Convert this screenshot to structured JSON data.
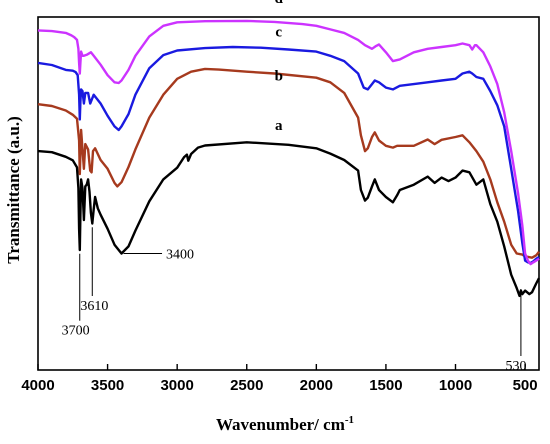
{
  "chart_data": {
    "type": "line",
    "xlabel": "Wavenumber/ cm",
    "xlabel_sup": "-1",
    "ylabel": "Transmittance (a.u.)",
    "xlim": [
      4000,
      400
    ],
    "ylim": [
      0,
      100
    ],
    "x_ticks": [
      4000,
      3500,
      3000,
      2500,
      2000,
      1500,
      1000,
      500
    ],
    "grid": false,
    "series": [
      {
        "name": "a",
        "color": "#000000",
        "points": [
          [
            4000,
            62
          ],
          [
            3900,
            61.7
          ],
          [
            3800,
            60.4
          ],
          [
            3750,
            59.4
          ],
          [
            3720,
            57.4
          ],
          [
            3710,
            51.5
          ],
          [
            3705,
            40
          ],
          [
            3700,
            34
          ],
          [
            3695,
            44
          ],
          [
            3690,
            54
          ],
          [
            3680,
            51.5
          ],
          [
            3670,
            42.5
          ],
          [
            3660,
            52
          ],
          [
            3650,
            52.5
          ],
          [
            3640,
            54
          ],
          [
            3630,
            50.5
          ],
          [
            3620,
            44.5
          ],
          [
            3610,
            41.5
          ],
          [
            3600,
            45.5
          ],
          [
            3590,
            49
          ],
          [
            3570,
            45.8
          ],
          [
            3550,
            44
          ],
          [
            3500,
            40
          ],
          [
            3450,
            35.5
          ],
          [
            3400,
            33
          ],
          [
            3350,
            35
          ],
          [
            3300,
            39.5
          ],
          [
            3200,
            47.8
          ],
          [
            3100,
            54
          ],
          [
            3000,
            57.3
          ],
          [
            2950,
            60.3
          ],
          [
            2930,
            61
          ],
          [
            2920,
            59.3
          ],
          [
            2900,
            61.2
          ],
          [
            2850,
            63
          ],
          [
            2800,
            63.6
          ],
          [
            2500,
            64.5
          ],
          [
            2200,
            63.8
          ],
          [
            2000,
            62.8
          ],
          [
            1900,
            61.3
          ],
          [
            1800,
            59.5
          ],
          [
            1700,
            56.5
          ],
          [
            1680,
            51
          ],
          [
            1650,
            48
          ],
          [
            1630,
            48.8
          ],
          [
            1600,
            52
          ],
          [
            1580,
            54
          ],
          [
            1550,
            51
          ],
          [
            1500,
            49
          ],
          [
            1450,
            47.5
          ],
          [
            1420,
            49.5
          ],
          [
            1400,
            51
          ],
          [
            1300,
            52.5
          ],
          [
            1200,
            54.8
          ],
          [
            1150,
            53
          ],
          [
            1100,
            54.5
          ],
          [
            1050,
            53.5
          ],
          [
            1000,
            54.5
          ],
          [
            950,
            56.5
          ],
          [
            900,
            56
          ],
          [
            850,
            52.5
          ],
          [
            800,
            54
          ],
          [
            750,
            47
          ],
          [
            700,
            42
          ],
          [
            650,
            35
          ],
          [
            600,
            27
          ],
          [
            560,
            23.2
          ],
          [
            540,
            21
          ],
          [
            530,
            22.5
          ],
          [
            520,
            21.5
          ],
          [
            500,
            22.5
          ],
          [
            470,
            21.5
          ],
          [
            450,
            22
          ],
          [
            420,
            24.5
          ],
          [
            400,
            26
          ]
        ]
      },
      {
        "name": "b",
        "color": "#a63a1e",
        "points": [
          [
            4000,
            75.3
          ],
          [
            3900,
            74.8
          ],
          [
            3800,
            73.5
          ],
          [
            3750,
            72.3
          ],
          [
            3720,
            71.2
          ],
          [
            3705,
            65
          ],
          [
            3700,
            55.5
          ],
          [
            3695,
            61
          ],
          [
            3690,
            68
          ],
          [
            3680,
            62.5
          ],
          [
            3670,
            57
          ],
          [
            3660,
            64
          ],
          [
            3640,
            62.5
          ],
          [
            3625,
            56.5
          ],
          [
            3615,
            56
          ],
          [
            3605,
            62
          ],
          [
            3590,
            62.8
          ],
          [
            3550,
            59.5
          ],
          [
            3500,
            57
          ],
          [
            3450,
            53
          ],
          [
            3430,
            52
          ],
          [
            3400,
            53.2
          ],
          [
            3350,
            57.5
          ],
          [
            3300,
            62.5
          ],
          [
            3200,
            71.5
          ],
          [
            3100,
            78
          ],
          [
            3000,
            82.5
          ],
          [
            2900,
            84.5
          ],
          [
            2800,
            85.3
          ],
          [
            2700,
            85.1
          ],
          [
            2500,
            84.5
          ],
          [
            2300,
            84
          ],
          [
            2000,
            82.8
          ],
          [
            1900,
            81.5
          ],
          [
            1800,
            78.5
          ],
          [
            1700,
            71.5
          ],
          [
            1680,
            66.5
          ],
          [
            1650,
            62
          ],
          [
            1630,
            62.8
          ],
          [
            1600,
            66
          ],
          [
            1580,
            67.3
          ],
          [
            1550,
            65
          ],
          [
            1500,
            63.5
          ],
          [
            1450,
            63
          ],
          [
            1420,
            63.5
          ],
          [
            1300,
            63.5
          ],
          [
            1200,
            65.3
          ],
          [
            1150,
            64
          ],
          [
            1100,
            65.2
          ],
          [
            1000,
            66
          ],
          [
            950,
            66.5
          ],
          [
            900,
            64.5
          ],
          [
            850,
            62
          ],
          [
            800,
            59
          ],
          [
            750,
            54
          ],
          [
            700,
            47.5
          ],
          [
            650,
            42
          ],
          [
            600,
            35.5
          ],
          [
            560,
            33
          ],
          [
            520,
            32.7
          ],
          [
            500,
            32.2
          ],
          [
            450,
            31.8
          ],
          [
            420,
            32.5
          ],
          [
            400,
            33.5
          ]
        ]
      },
      {
        "name": "c",
        "color": "#1a1ae0",
        "points": [
          [
            4000,
            87
          ],
          [
            3900,
            86.4
          ],
          [
            3800,
            85
          ],
          [
            3750,
            84.8
          ],
          [
            3730,
            84.4
          ],
          [
            3715,
            83.5
          ],
          [
            3705,
            78
          ],
          [
            3700,
            71
          ],
          [
            3695,
            76
          ],
          [
            3690,
            79.5
          ],
          [
            3680,
            79
          ],
          [
            3670,
            75.5
          ],
          [
            3660,
            78.5
          ],
          [
            3640,
            78.5
          ],
          [
            3625,
            75.5
          ],
          [
            3615,
            76.5
          ],
          [
            3600,
            78
          ],
          [
            3550,
            75.5
          ],
          [
            3500,
            72
          ],
          [
            3450,
            69
          ],
          [
            3420,
            68
          ],
          [
            3400,
            69
          ],
          [
            3350,
            72.5
          ],
          [
            3300,
            78
          ],
          [
            3200,
            85.5
          ],
          [
            3100,
            89.2
          ],
          [
            3000,
            90.5
          ],
          [
            2800,
            91.2
          ],
          [
            2600,
            91.5
          ],
          [
            2400,
            91.3
          ],
          [
            2200,
            90.8
          ],
          [
            2000,
            90.2
          ],
          [
            1900,
            89
          ],
          [
            1800,
            87.5
          ],
          [
            1700,
            84
          ],
          [
            1660,
            80
          ],
          [
            1630,
            79.5
          ],
          [
            1600,
            81
          ],
          [
            1580,
            82
          ],
          [
            1550,
            81.5
          ],
          [
            1500,
            80
          ],
          [
            1450,
            79.5
          ],
          [
            1400,
            80.5
          ],
          [
            1300,
            81
          ],
          [
            1200,
            81.5
          ],
          [
            1100,
            82
          ],
          [
            1000,
            82.5
          ],
          [
            950,
            84
          ],
          [
            900,
            84.5
          ],
          [
            880,
            84
          ],
          [
            850,
            83
          ],
          [
            800,
            82.5
          ],
          [
            750,
            79
          ],
          [
            700,
            75
          ],
          [
            650,
            69
          ],
          [
            600,
            57
          ],
          [
            550,
            45
          ],
          [
            520,
            36
          ],
          [
            500,
            31
          ],
          [
            480,
            30.5
          ],
          [
            460,
            30.3
          ],
          [
            440,
            30.8
          ],
          [
            420,
            31.5
          ],
          [
            400,
            32
          ]
        ]
      },
      {
        "name": "d",
        "color": "#cc33ff",
        "points": [
          [
            4000,
            96.2
          ],
          [
            3900,
            96
          ],
          [
            3800,
            95.5
          ],
          [
            3760,
            94.8
          ],
          [
            3740,
            94.3
          ],
          [
            3720,
            93.5
          ],
          [
            3710,
            91
          ],
          [
            3705,
            87
          ],
          [
            3700,
            84
          ],
          [
            3695,
            87
          ],
          [
            3690,
            90.2
          ],
          [
            3680,
            89
          ],
          [
            3670,
            89
          ],
          [
            3650,
            89.3
          ],
          [
            3620,
            90
          ],
          [
            3600,
            89
          ],
          [
            3550,
            86.5
          ],
          [
            3500,
            83.5
          ],
          [
            3450,
            81.5
          ],
          [
            3420,
            81.3
          ],
          [
            3400,
            82
          ],
          [
            3350,
            85
          ],
          [
            3300,
            89
          ],
          [
            3200,
            94.5
          ],
          [
            3100,
            97.5
          ],
          [
            3000,
            98.5
          ],
          [
            2800,
            98.8
          ],
          [
            2500,
            98.9
          ],
          [
            2300,
            98.6
          ],
          [
            2100,
            98
          ],
          [
            2000,
            97.5
          ],
          [
            1900,
            96.5
          ],
          [
            1800,
            95.5
          ],
          [
            1700,
            93.5
          ],
          [
            1650,
            92
          ],
          [
            1600,
            91
          ],
          [
            1570,
            91.8
          ],
          [
            1550,
            92.2
          ],
          [
            1500,
            90
          ],
          [
            1450,
            87.5
          ],
          [
            1400,
            88
          ],
          [
            1300,
            90
          ],
          [
            1200,
            91
          ],
          [
            1100,
            91.5
          ],
          [
            1000,
            92
          ],
          [
            950,
            92.5
          ],
          [
            900,
            92
          ],
          [
            880,
            90.8
          ],
          [
            860,
            92
          ],
          [
            850,
            92
          ],
          [
            800,
            90
          ],
          [
            750,
            86
          ],
          [
            700,
            81
          ],
          [
            650,
            73
          ],
          [
            600,
            62
          ],
          [
            550,
            50
          ],
          [
            520,
            41
          ],
          [
            500,
            33
          ],
          [
            480,
            31
          ],
          [
            460,
            30
          ],
          [
            440,
            30.5
          ],
          [
            420,
            31
          ],
          [
            400,
            31.5
          ]
        ]
      }
    ],
    "series_label_positions": [
      {
        "name": "a",
        "x": 2270,
        "y": 68
      },
      {
        "name": "b",
        "x": 2270,
        "y": 82
      },
      {
        "name": "c",
        "x": 2270,
        "y": 94.5
      },
      {
        "name": "d",
        "x": 2270,
        "y": 104
      }
    ],
    "annotations": [
      {
        "text": "3700",
        "x": 3700,
        "y": 33.5,
        "label_x": 3730,
        "label_y": 10
      },
      {
        "text": "3610",
        "x": 3610,
        "y": 41,
        "label_x": 3595,
        "label_y": 17
      },
      {
        "text": "3400",
        "x": 3385,
        "y": 33,
        "label_x": 3080,
        "label_y": 33
      },
      {
        "text": "530",
        "x": 530,
        "y": 23.5,
        "label_x": 565,
        "label_y": 0
      }
    ]
  }
}
